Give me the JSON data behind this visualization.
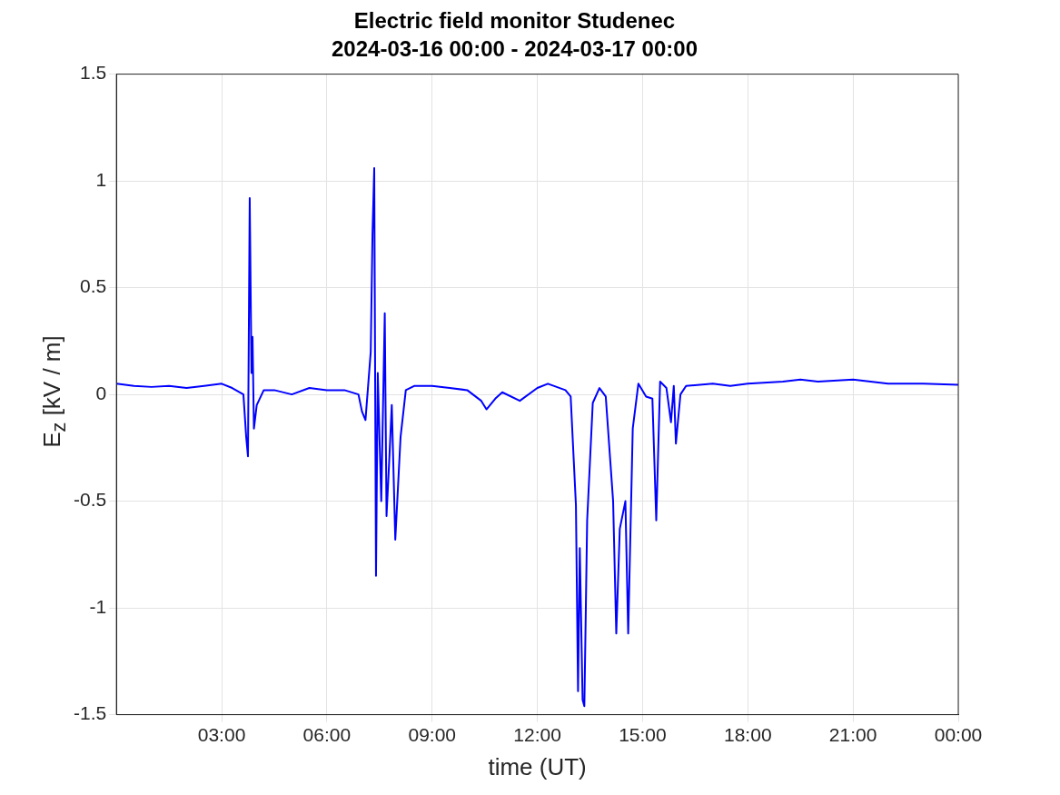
{
  "chart_data": {
    "type": "line",
    "title": "Electric field monitor Studenec",
    "subtitle": "2024-03-16 00:00 - 2024-03-17 00:00",
    "xlabel": "time (UT)",
    "ylabel": "E$_{z}$ [kV / m]",
    "x": [
      0,
      0.5,
      1,
      1.5,
      2,
      2.5,
      3,
      3.3,
      3.62,
      3.7,
      3.75,
      3.8,
      3.85,
      3.88,
      3.92,
      4,
      4.2,
      4.5,
      5,
      5.5,
      6,
      6.5,
      6.9,
      7,
      7.1,
      7.25,
      7.3,
      7.35,
      7.4,
      7.45,
      7.55,
      7.65,
      7.7,
      7.78,
      7.85,
      7.95,
      8.1,
      8.25,
      8.5,
      9,
      9.5,
      10,
      10.4,
      10.55,
      10.8,
      11,
      11.5,
      12,
      12.3,
      12.8,
      12.95,
      13.1,
      13.16,
      13.21,
      13.29,
      13.34,
      13.42,
      13.58,
      13.77,
      13.95,
      14.16,
      14.25,
      14.35,
      14.51,
      14.59,
      14.72,
      14.88,
      15.1,
      15.28,
      15.39,
      15.5,
      15.68,
      15.81,
      15.89,
      15.95,
      16.08,
      16.24,
      17,
      17.5,
      18,
      19,
      19.5,
      20,
      21,
      22,
      23,
      24
    ],
    "series": [
      {
        "color": "#0000ff",
        "values": [
          0.05,
          0.04,
          0.035,
          0.04,
          0.03,
          0.04,
          0.05,
          0.03,
          0,
          -0.2,
          -0.29,
          0.92,
          0.1,
          0.27,
          -0.16,
          -0.05,
          0.02,
          0.02,
          0,
          0.03,
          0.02,
          0.02,
          0,
          -0.08,
          -0.12,
          0.2,
          0.75,
          1.06,
          -0.85,
          0.1,
          -0.5,
          0.38,
          -0.57,
          -0.3,
          -0.05,
          -0.68,
          -0.2,
          0.02,
          0.04,
          0.04,
          0.03,
          0.02,
          -0.03,
          -0.07,
          -0.02,
          0.01,
          -0.03,
          0.03,
          0.05,
          0.02,
          -0.01,
          -0.52,
          -1.39,
          -0.72,
          -1.43,
          -1.46,
          -0.59,
          -0.04,
          0.03,
          -0.01,
          -0.5,
          -1.12,
          -0.63,
          -0.5,
          -1.12,
          -0.16,
          0.05,
          -0.01,
          -0.02,
          -0.59,
          0.06,
          0.03,
          -0.13,
          0.04,
          -0.23,
          0,
          0.04,
          0.05,
          0.04,
          0.05,
          0.06,
          0.07,
          0.06,
          0.07,
          0.05,
          0.05,
          0.045
        ]
      }
    ],
    "xlim": [
      0,
      24
    ],
    "xticks": [
      {
        "value": 3,
        "label": "03:00"
      },
      {
        "value": 6,
        "label": "06:00"
      },
      {
        "value": 9,
        "label": "09:00"
      },
      {
        "value": 12,
        "label": "12:00"
      },
      {
        "value": 15,
        "label": "15:00"
      },
      {
        "value": 18,
        "label": "18:00"
      },
      {
        "value": 21,
        "label": "21:00"
      },
      {
        "value": 24,
        "label": "00:00"
      }
    ],
    "ylim": [
      -1.5,
      1.5
    ],
    "yticks": [
      -1.5,
      -1,
      -0.5,
      0,
      0.5,
      1,
      1.5
    ],
    "grid": true,
    "legend": false,
    "marker": "none",
    "line_style": "solid"
  }
}
